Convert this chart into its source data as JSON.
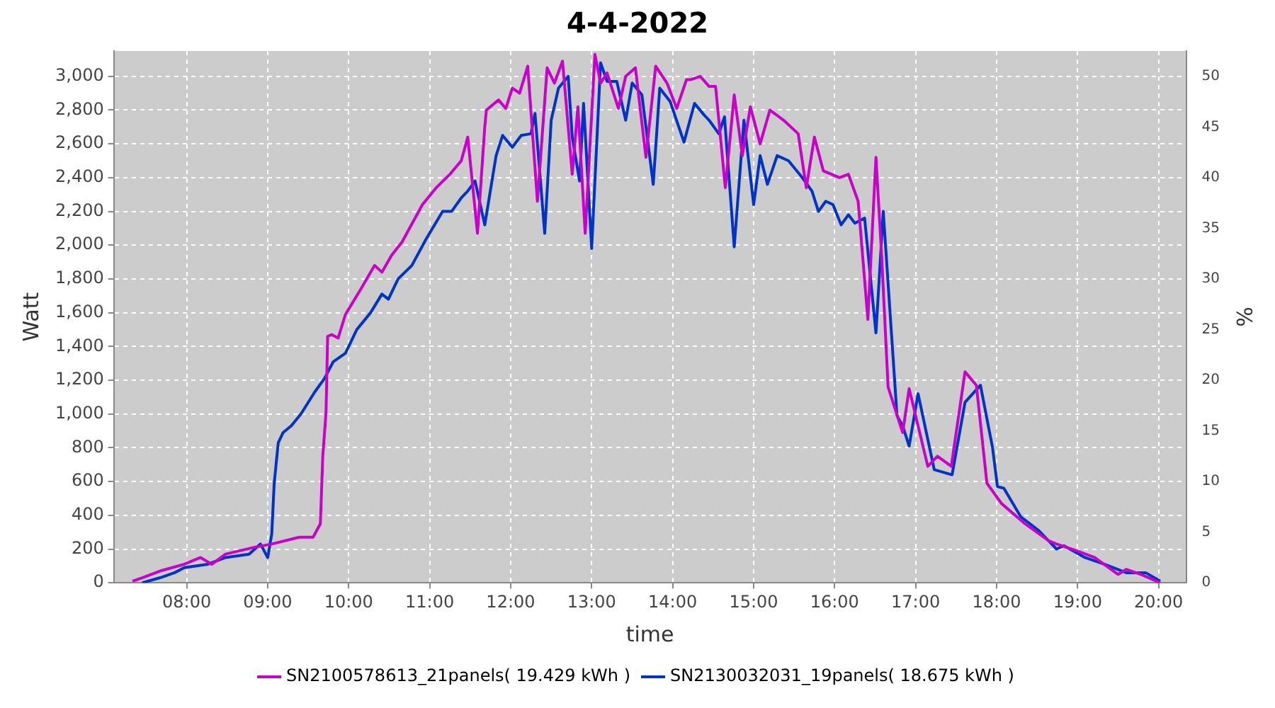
{
  "chart_data": {
    "type": "line",
    "title": "4-4-2022",
    "xlabel": "time",
    "ylabel": "Watt",
    "y2label": "%",
    "xlim": [
      7.1,
      20.34
    ],
    "xticks": [
      {
        "value": 8,
        "label": "08:00"
      },
      {
        "value": 9,
        "label": "09:00"
      },
      {
        "value": 10,
        "label": "10:00"
      },
      {
        "value": 11,
        "label": "11:00"
      },
      {
        "value": 12,
        "label": "12:00"
      },
      {
        "value": 13,
        "label": "13:00"
      },
      {
        "value": 14,
        "label": "14:00"
      },
      {
        "value": 15,
        "label": "15:00"
      },
      {
        "value": 16,
        "label": "16:00"
      },
      {
        "value": 17,
        "label": "17:00"
      },
      {
        "value": 18,
        "label": "18:00"
      },
      {
        "value": 19,
        "label": "19:00"
      },
      {
        "value": 20,
        "label": "20:00"
      }
    ],
    "ylim": [
      0,
      3150
    ],
    "yticks": [
      0,
      200,
      400,
      600,
      800,
      {
        "value": 1000,
        "label": "1,000"
      },
      {
        "value": 1200,
        "label": "1,200"
      },
      {
        "value": 1400,
        "label": "1,400"
      },
      {
        "value": 1600,
        "label": "1,600"
      },
      {
        "value": 1800,
        "label": "1,800"
      },
      {
        "value": 2000,
        "label": "2,000"
      },
      {
        "value": 2200,
        "label": "2,200"
      },
      {
        "value": 2400,
        "label": "2,400"
      },
      {
        "value": 2600,
        "label": "2,600"
      },
      {
        "value": 2800,
        "label": "2,800"
      },
      {
        "value": 3000,
        "label": "3,000"
      }
    ],
    "y2lim": [
      0,
      52.5
    ],
    "y2ticks": [
      0,
      5,
      10,
      15,
      20,
      25,
      30,
      35,
      40,
      45,
      50
    ],
    "grid": true,
    "legend": "bottom",
    "series": [
      {
        "name": "SN2100578613_21panels( 19.429 kWh )",
        "color": "#cc00cc",
        "x": [
          7.33,
          7.45,
          7.67,
          7.97,
          8.17,
          8.31,
          8.48,
          8.83,
          9.05,
          9.39,
          9.56,
          9.65,
          9.68,
          9.72,
          9.74,
          9.79,
          9.87,
          9.96,
          10.15,
          10.32,
          10.41,
          10.53,
          10.66,
          10.91,
          11.08,
          11.25,
          11.39,
          11.47,
          11.59,
          11.68,
          11.7,
          11.85,
          11.94,
          12.02,
          12.11,
          12.21,
          12.33,
          12.45,
          12.54,
          12.64,
          12.76,
          12.83,
          12.92,
          13.04,
          13.11,
          13.19,
          13.33,
          13.42,
          13.54,
          13.67,
          13.79,
          13.93,
          14.05,
          14.17,
          14.22,
          14.34,
          14.45,
          14.53,
          14.65,
          14.76,
          14.86,
          14.96,
          15.08,
          15.2,
          15.37,
          15.55,
          15.65,
          15.75,
          15.86,
          16.06,
          16.17,
          16.29,
          16.41,
          16.51,
          16.58,
          16.66,
          16.84,
          16.92,
          17.15,
          17.27,
          17.44,
          17.61,
          17.75,
          17.88,
          18.06,
          18.35,
          18.64,
          18.74,
          18.99,
          19.21,
          19.5,
          19.6,
          19.78,
          20.02
        ],
        "values": [
          10,
          30,
          70,
          110,
          150,
          110,
          170,
          210,
          230,
          270,
          270,
          350,
          750,
          1010,
          1460,
          1470,
          1450,
          1590,
          1740,
          1880,
          1840,
          1940,
          2020,
          2240,
          2340,
          2420,
          2500,
          2640,
          2070,
          2700,
          2800,
          2860,
          2810,
          2930,
          2900,
          3060,
          2260,
          3050,
          2960,
          3090,
          2420,
          2820,
          2070,
          3130,
          2960,
          3020,
          2810,
          3000,
          3050,
          2520,
          3060,
          2960,
          2810,
          2980,
          2980,
          3000,
          2940,
          2940,
          2340,
          2890,
          2530,
          2820,
          2600,
          2800,
          2740,
          2660,
          2340,
          2640,
          2440,
          2400,
          2420,
          2260,
          1560,
          2520,
          1940,
          1160,
          890,
          1150,
          690,
          750,
          690,
          1250,
          1170,
          590,
          470,
          350,
          250,
          230,
          190,
          150,
          50,
          80,
          50,
          0
        ]
      },
      {
        "name": "SN2130032031_19panels( 18.675 kWh )",
        "color": "#0033cc",
        "x": [
          7.45,
          7.67,
          7.85,
          7.97,
          8.26,
          8.48,
          8.77,
          8.91,
          9.0,
          9.05,
          9.08,
          9.13,
          9.19,
          9.29,
          9.41,
          9.58,
          9.7,
          9.81,
          9.96,
          10.1,
          10.27,
          10.41,
          10.49,
          10.61,
          10.78,
          10.96,
          11.16,
          11.27,
          11.39,
          11.47,
          11.56,
          11.68,
          11.82,
          11.9,
          12.02,
          12.13,
          12.25,
          12.3,
          12.42,
          12.5,
          12.59,
          12.71,
          12.76,
          12.85,
          12.9,
          13.0,
          13.11,
          13.19,
          13.31,
          13.42,
          13.5,
          13.62,
          13.76,
          13.84,
          13.97,
          14.14,
          14.27,
          14.39,
          14.45,
          14.57,
          14.64,
          14.76,
          14.88,
          15.0,
          15.08,
          15.17,
          15.29,
          15.43,
          15.6,
          15.72,
          15.8,
          15.89,
          15.98,
          16.08,
          16.17,
          16.25,
          16.37,
          16.51,
          16.6,
          16.77,
          16.84,
          16.92,
          17.03,
          17.23,
          17.45,
          17.61,
          17.8,
          17.95,
          18.01,
          18.09,
          18.3,
          18.52,
          18.74,
          18.83,
          19.09,
          19.33,
          19.6,
          19.84,
          20.02
        ],
        "values": [
          0,
          30,
          60,
          90,
          110,
          150,
          170,
          230,
          150,
          290,
          590,
          830,
          890,
          930,
          1000,
          1130,
          1210,
          1310,
          1360,
          1500,
          1600,
          1710,
          1680,
          1800,
          1880,
          2040,
          2200,
          2200,
          2280,
          2320,
          2380,
          2120,
          2530,
          2650,
          2580,
          2650,
          2660,
          2780,
          2070,
          2740,
          2930,
          3000,
          2640,
          2380,
          2840,
          1980,
          3080,
          2970,
          2970,
          2740,
          2960,
          2890,
          2360,
          2930,
          2850,
          2610,
          2840,
          2770,
          2740,
          2660,
          2760,
          1990,
          2740,
          2240,
          2530,
          2360,
          2530,
          2500,
          2400,
          2320,
          2200,
          2260,
          2240,
          2120,
          2180,
          2130,
          2160,
          1480,
          2200,
          990,
          930,
          810,
          1120,
          670,
          640,
          1070,
          1170,
          800,
          570,
          560,
          390,
          310,
          200,
          220,
          150,
          110,
          60,
          60,
          10
        ]
      }
    ]
  }
}
